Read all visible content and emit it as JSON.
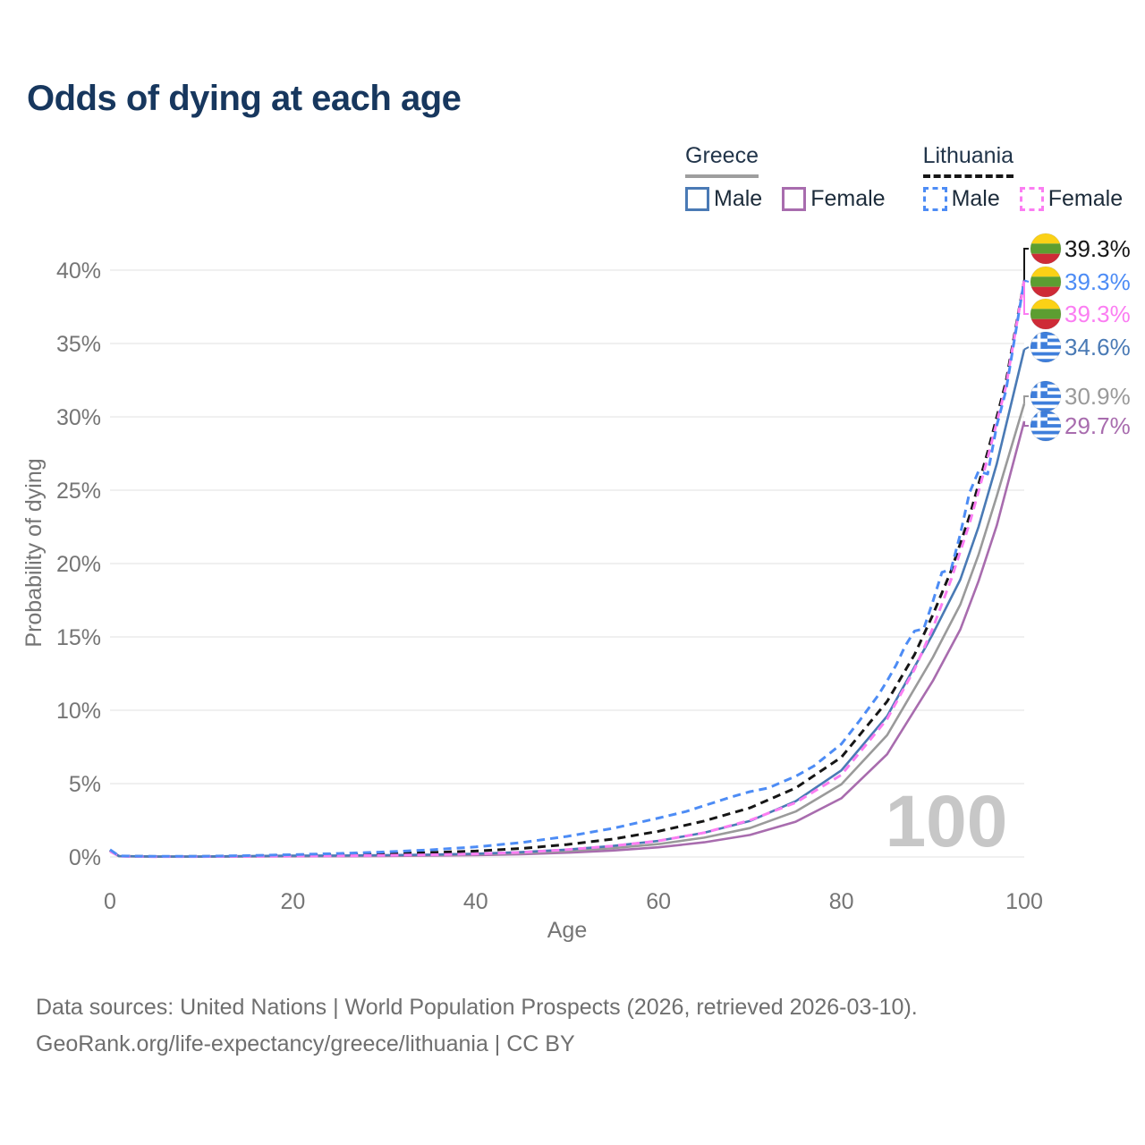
{
  "title": "Odds of dying at each age",
  "legend": {
    "groups": [
      {
        "country": "Greece",
        "line_style": "solid",
        "underline_color": "#9e9e9e",
        "items": [
          {
            "label": "Male",
            "color": "#4a7ab5"
          },
          {
            "label": "Female",
            "color": "#a86cae"
          }
        ]
      },
      {
        "country": "Lithuania",
        "line_style": "dashed",
        "underline_color": "#161616",
        "items": [
          {
            "label": "Male",
            "color": "#4d8cf5"
          },
          {
            "label": "Female",
            "color": "#fb7df2"
          }
        ]
      }
    ]
  },
  "chart_data": {
    "type": "line",
    "title": "Odds of dying at each age",
    "xlabel": "Age",
    "ylabel": "Probability of dying",
    "xlim": [
      0,
      100
    ],
    "ylim": [
      0,
      40
    ],
    "x_ticks": [
      "0",
      "20",
      "40",
      "60",
      "80",
      "100"
    ],
    "y_ticks": [
      "0%",
      "5%",
      "10%",
      "15%",
      "20%",
      "25%",
      "30%",
      "35%",
      "40%"
    ],
    "grid": true,
    "hover_age_indicator": "100",
    "series": [
      {
        "id": "greece-female",
        "name": "Greece Female",
        "country": "Greece",
        "sex": "Female",
        "color": "#a86cae",
        "dash": false,
        "end_label": {
          "text": "29.7%",
          "flag": "greece",
          "slot": 5
        },
        "points": [
          [
            0,
            0.38
          ],
          [
            1,
            0.05
          ],
          [
            5,
            0.02
          ],
          [
            10,
            0.02
          ],
          [
            15,
            0.03
          ],
          [
            20,
            0.04
          ],
          [
            25,
            0.05
          ],
          [
            30,
            0.07
          ],
          [
            35,
            0.09
          ],
          [
            40,
            0.13
          ],
          [
            45,
            0.19
          ],
          [
            50,
            0.29
          ],
          [
            55,
            0.44
          ],
          [
            60,
            0.66
          ],
          [
            65,
            1.0
          ],
          [
            70,
            1.5
          ],
          [
            75,
            2.4
          ],
          [
            80,
            4.0
          ],
          [
            85,
            7.0
          ],
          [
            90,
            12.0
          ],
          [
            93,
            15.5
          ],
          [
            95,
            18.8
          ],
          [
            97,
            22.6
          ],
          [
            100,
            29.7
          ]
        ]
      },
      {
        "id": "greece-total",
        "name": "Greece Both sexes",
        "country": "Greece",
        "sex": "Both",
        "color": "#9a9a9a",
        "dash": false,
        "end_label": {
          "text": "30.9%",
          "flag": "greece",
          "slot": 4
        },
        "points": [
          [
            0,
            0.42
          ],
          [
            1,
            0.055
          ],
          [
            5,
            0.025
          ],
          [
            10,
            0.025
          ],
          [
            15,
            0.045
          ],
          [
            20,
            0.065
          ],
          [
            25,
            0.075
          ],
          [
            30,
            0.095
          ],
          [
            35,
            0.125
          ],
          [
            40,
            0.175
          ],
          [
            45,
            0.26
          ],
          [
            50,
            0.4
          ],
          [
            55,
            0.6
          ],
          [
            60,
            0.88
          ],
          [
            65,
            1.32
          ],
          [
            70,
            1.97
          ],
          [
            75,
            3.1
          ],
          [
            80,
            4.95
          ],
          [
            85,
            8.3
          ],
          [
            90,
            13.6
          ],
          [
            93,
            17.2
          ],
          [
            95,
            20.6
          ],
          [
            97,
            24.6
          ],
          [
            100,
            30.9
          ]
        ]
      },
      {
        "id": "greece-male",
        "name": "Greece Male",
        "country": "Greece",
        "sex": "Male",
        "color": "#4a7ab5",
        "dash": false,
        "end_label": {
          "text": "34.6%",
          "flag": "greece",
          "slot": 3
        },
        "points": [
          [
            0,
            0.45
          ],
          [
            1,
            0.06
          ],
          [
            5,
            0.03
          ],
          [
            10,
            0.03
          ],
          [
            15,
            0.06
          ],
          [
            20,
            0.09
          ],
          [
            25,
            0.1
          ],
          [
            30,
            0.12
          ],
          [
            35,
            0.16
          ],
          [
            40,
            0.22
          ],
          [
            45,
            0.33
          ],
          [
            50,
            0.5
          ],
          [
            55,
            0.75
          ],
          [
            60,
            1.1
          ],
          [
            65,
            1.65
          ],
          [
            70,
            2.45
          ],
          [
            75,
            3.8
          ],
          [
            80,
            5.9
          ],
          [
            85,
            9.6
          ],
          [
            90,
            15.2
          ],
          [
            93,
            18.9
          ],
          [
            95,
            22.5
          ],
          [
            97,
            26.8
          ],
          [
            100,
            34.6
          ]
        ]
      },
      {
        "id": "lithuania-total",
        "name": "Lithuania Both sexes",
        "country": "Lithuania",
        "sex": "Both",
        "color": "#161616",
        "dash": true,
        "end_label": {
          "text": "39.3%",
          "flag": "lithuania",
          "slot": 0
        },
        "points": [
          [
            0,
            0.45
          ],
          [
            1,
            0.06
          ],
          [
            5,
            0.03
          ],
          [
            10,
            0.035
          ],
          [
            15,
            0.06
          ],
          [
            20,
            0.11
          ],
          [
            25,
            0.16
          ],
          [
            30,
            0.22
          ],
          [
            35,
            0.3
          ],
          [
            40,
            0.4
          ],
          [
            45,
            0.58
          ],
          [
            50,
            0.85
          ],
          [
            55,
            1.22
          ],
          [
            60,
            1.75
          ],
          [
            65,
            2.45
          ],
          [
            70,
            3.35
          ],
          [
            75,
            4.7
          ],
          [
            80,
            6.8
          ],
          [
            85,
            10.6
          ],
          [
            88,
            13.8
          ],
          [
            90,
            16.5
          ],
          [
            92,
            19.5
          ],
          [
            94,
            23.2
          ],
          [
            95,
            25.4
          ],
          [
            96,
            27.6
          ],
          [
            98,
            32.4
          ],
          [
            100,
            39.3
          ]
        ]
      },
      {
        "id": "lithuania-female",
        "name": "Lithuania Female",
        "country": "Lithuania",
        "sex": "Female",
        "color": "#fb7df2",
        "dash": true,
        "end_label": {
          "text": "39.3%",
          "flag": "lithuania",
          "slot": 2
        },
        "points": [
          [
            0,
            0.4
          ],
          [
            1,
            0.05
          ],
          [
            5,
            0.02
          ],
          [
            10,
            0.025
          ],
          [
            15,
            0.04
          ],
          [
            20,
            0.06
          ],
          [
            25,
            0.08
          ],
          [
            30,
            0.11
          ],
          [
            35,
            0.15
          ],
          [
            40,
            0.21
          ],
          [
            45,
            0.31
          ],
          [
            50,
            0.5
          ],
          [
            55,
            0.75
          ],
          [
            60,
            1.1
          ],
          [
            65,
            1.65
          ],
          [
            70,
            2.5
          ],
          [
            75,
            3.7
          ],
          [
            80,
            5.6
          ],
          [
            85,
            9.4
          ],
          [
            88,
            12.8
          ],
          [
            90,
            15.6
          ],
          [
            92,
            18.9
          ],
          [
            94,
            22.7
          ],
          [
            95,
            24.9
          ],
          [
            96,
            27.2
          ],
          [
            98,
            32.1
          ],
          [
            100,
            39.3
          ]
        ]
      },
      {
        "id": "lithuania-male",
        "name": "Lithuania Male",
        "country": "Lithuania",
        "sex": "Male",
        "color": "#4d8cf5",
        "dash": true,
        "end_label": {
          "text": "39.3%",
          "flag": "lithuania",
          "slot": 1
        },
        "points": [
          [
            0,
            0.5
          ],
          [
            1,
            0.07
          ],
          [
            5,
            0.04
          ],
          [
            10,
            0.05
          ],
          [
            15,
            0.09
          ],
          [
            20,
            0.16
          ],
          [
            25,
            0.24
          ],
          [
            30,
            0.34
          ],
          [
            35,
            0.48
          ],
          [
            40,
            0.68
          ],
          [
            45,
            0.98
          ],
          [
            50,
            1.4
          ],
          [
            55,
            1.95
          ],
          [
            60,
            2.65
          ],
          [
            63,
            3.1
          ],
          [
            65,
            3.5
          ],
          [
            68,
            4.1
          ],
          [
            70,
            4.45
          ],
          [
            72,
            4.7
          ],
          [
            75,
            5.5
          ],
          [
            77,
            6.2
          ],
          [
            80,
            7.7
          ],
          [
            82,
            9.3
          ],
          [
            84,
            11.0
          ],
          [
            85,
            12.0
          ],
          [
            86,
            13.1
          ],
          [
            87,
            14.4
          ],
          [
            88,
            15.4
          ],
          [
            89,
            15.55
          ],
          [
            90,
            17.4
          ],
          [
            91,
            19.4
          ],
          [
            92,
            19.6
          ],
          [
            93,
            22.0
          ],
          [
            94,
            24.8
          ],
          [
            95,
            26.3
          ],
          [
            96,
            26.1
          ],
          [
            97,
            29.4
          ],
          [
            98,
            31.8
          ],
          [
            100,
            39.3
          ]
        ]
      }
    ],
    "flag_colors": {
      "lithuania": {
        "yellow": "#FBD116",
        "green": "#5C9E31",
        "red": "#CE2B37"
      },
      "greece": {
        "blue": "#3E7EDB",
        "white": "#ffffff"
      }
    }
  },
  "footer": {
    "line1": "Data sources: United Nations | World Population Prospects (2026, retrieved 2026-03-10).",
    "line2": "GeoRank.org/life-expectancy/greece/lithuania | CC BY"
  }
}
